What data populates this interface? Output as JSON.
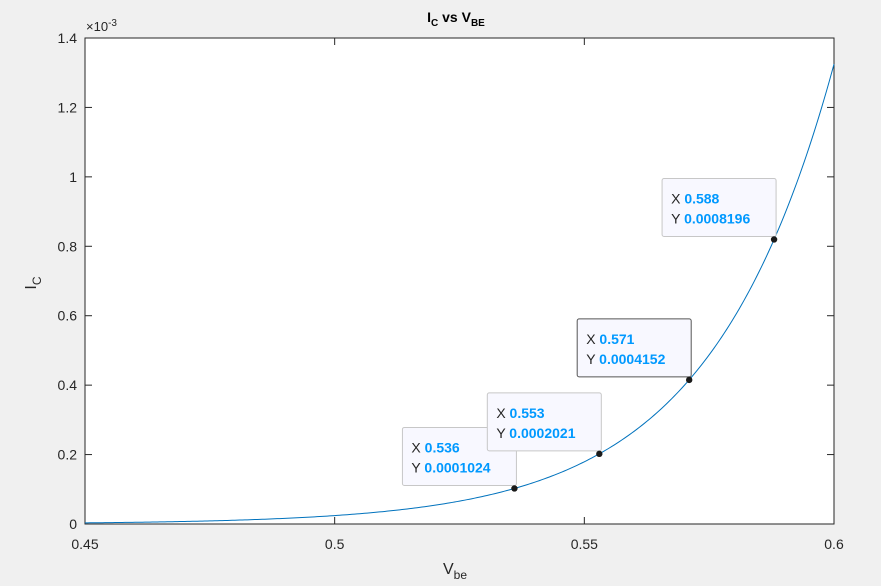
{
  "chart_data": {
    "type": "line",
    "title": {
      "main1": "I",
      "sub1": "C",
      "mid": " vs V",
      "sub2": "BE"
    },
    "xlabel": {
      "main": "V",
      "sub": "be"
    },
    "ylabel": {
      "main": "I",
      "sub": "C"
    },
    "xlim": [
      0.45,
      0.6
    ],
    "ylim": [
      0,
      0.0014
    ],
    "x_ticks": [
      0.45,
      0.5,
      0.55,
      0.6
    ],
    "x_tick_labels": [
      "0.45",
      "0.5",
      "0.55",
      "0.6"
    ],
    "y_ticks": [
      0,
      0.0002,
      0.0004,
      0.0006,
      0.0008,
      0.001,
      0.0012,
      0.0014
    ],
    "y_tick_labels": [
      "0",
      "0.2",
      "0.4",
      "0.6",
      "0.8",
      "1",
      "1.2",
      "1.4"
    ],
    "y_exponent_label": "×10",
    "y_exponent_value": "-3",
    "grid": false,
    "line_color": "#0072BD",
    "series": [
      {
        "x": [
          0.45,
          0.46,
          0.47,
          0.48,
          0.49,
          0.5,
          0.51,
          0.52,
          0.53,
          0.536,
          0.54,
          0.553,
          0.56,
          0.571,
          0.58,
          0.588,
          0.59,
          0.6
        ],
        "y": [
          1.6e-06,
          2.4e-06,
          3.5e-06,
          5.1e-06,
          7.5e-06,
          1.1e-05,
          1.62e-05,
          2.37e-05,
          3.47e-05,
          0.0001024,
          5.1e-05,
          0.0002021,
          0.000262,
          0.0004152,
          0.00059,
          0.0008196,
          0.00088,
          0.00131
        ]
      }
    ],
    "datatips": [
      {
        "x_label": "X",
        "x_value": "0.536",
        "y_label": "Y",
        "y_value": "0.0001024",
        "x": 0.536,
        "y": 0.0001024
      },
      {
        "x_label": "X",
        "x_value": "0.553",
        "y_label": "Y",
        "y_value": "0.0002021",
        "x": 0.553,
        "y": 0.0002021
      },
      {
        "x_label": "X",
        "x_value": "0.571",
        "y_label": "Y",
        "y_value": "0.0004152",
        "x": 0.571,
        "y": 0.0004152
      },
      {
        "x_label": "X",
        "x_value": "0.588",
        "y_label": "Y",
        "y_value": "0.0008196",
        "x": 0.588,
        "y": 0.0008196
      }
    ],
    "datatip_value_color": "#0099ff"
  }
}
